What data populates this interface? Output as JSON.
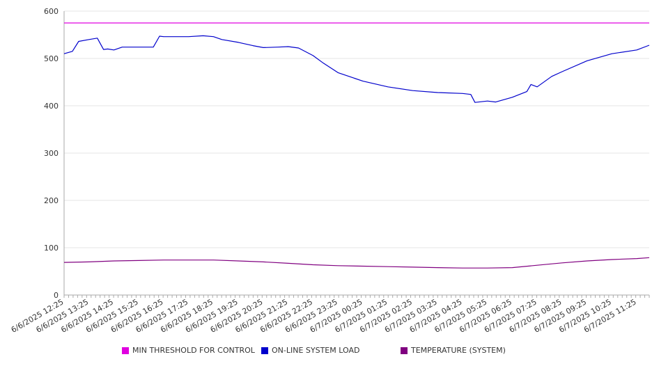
{
  "colors": {
    "threshold": "#e000e0",
    "load": "#0000cc",
    "temperature": "#800080",
    "grid": "#e6e6e6",
    "axis": "#aaaaaa"
  },
  "legend": {
    "items": [
      {
        "label": "MIN THRESHOLD FOR CONTROL",
        "color": "#e000e0"
      },
      {
        "label": "ON-LINE SYSTEM LOAD",
        "color": "#0000cc"
      },
      {
        "label": "TEMPERATURE (SYSTEM)",
        "color": "#800080"
      }
    ]
  },
  "chart_data": {
    "type": "line",
    "title": "",
    "xlabel": "",
    "ylabel": "",
    "ylim": [
      0,
      600
    ],
    "yticks": [
      0,
      100,
      200,
      300,
      400,
      500,
      600
    ],
    "grid": true,
    "legend_position": "bottom",
    "x_range": [
      "6/6/2025 12:25",
      "6/7/2025 11:55"
    ],
    "x_tick_labels": [
      "6/6/2025 12:25",
      "6/6/2025 13:25",
      "6/6/2025 14:25",
      "6/6/2025 15:25",
      "6/6/2025 16:25",
      "6/6/2025 17:25",
      "6/6/2025 18:25",
      "6/6/2025 19:25",
      "6/6/2025 20:25",
      "6/6/2025 21:25",
      "6/6/2025 22:25",
      "6/6/2025 23:25",
      "6/7/2025 00:25",
      "6/7/2025 01:25",
      "6/7/2025 02:25",
      "6/7/2025 03:25",
      "6/7/2025 04:25",
      "6/7/2025 05:25",
      "6/7/2025 06:25",
      "6/7/2025 07:25",
      "6/7/2025 08:25",
      "6/7/2025 09:25",
      "6/7/2025 10:25",
      "6/7/2025 11:25"
    ],
    "series": [
      {
        "name": "MIN THRESHOLD FOR CONTROL",
        "x": [
          "6/6/2025 12:25",
          "6/7/2025 11:55"
        ],
        "values": [
          575,
          575
        ]
      },
      {
        "name": "ON-LINE SYSTEM LOAD",
        "x": [
          "6/6/2025 12:25",
          "6/6/2025 12:45",
          "6/6/2025 13:00",
          "6/6/2025 13:25",
          "6/6/2025 13:45",
          "6/6/2025 14:00",
          "6/6/2025 14:10",
          "6/6/2025 14:25",
          "6/6/2025 14:45",
          "6/6/2025 15:25",
          "6/6/2025 16:00",
          "6/6/2025 16:15",
          "6/6/2025 16:25",
          "6/6/2025 17:25",
          "6/6/2025 18:00",
          "6/6/2025 18:25",
          "6/6/2025 18:45",
          "6/6/2025 19:25",
          "6/6/2025 20:00",
          "6/6/2025 20:25",
          "6/6/2025 21:00",
          "6/6/2025 21:25",
          "6/6/2025 21:50",
          "6/6/2025 22:25",
          "6/6/2025 22:50",
          "6/6/2025 23:25",
          "6/7/2025 00:25",
          "6/7/2025 01:25",
          "6/7/2025 02:25",
          "6/7/2025 03:25",
          "6/7/2025 04:25",
          "6/7/2025 04:45",
          "6/7/2025 04:55",
          "6/7/2025 05:25",
          "6/7/2025 05:45",
          "6/7/2025 06:25",
          "6/7/2025 07:00",
          "6/7/2025 07:10",
          "6/7/2025 07:25",
          "6/7/2025 08:00",
          "6/7/2025 08:25",
          "6/7/2025 09:25",
          "6/7/2025 10:25",
          "6/7/2025 11:25",
          "6/7/2025 11:55"
        ],
        "values": [
          510,
          515,
          536,
          540,
          543,
          519,
          520,
          518,
          524,
          524,
          524,
          547,
          546,
          546,
          548,
          546,
          540,
          534,
          527,
          523,
          524,
          525,
          522,
          506,
          490,
          470,
          452,
          440,
          432,
          428,
          426,
          424,
          407,
          410,
          408,
          418,
          430,
          445,
          440,
          462,
          472,
          495,
          510,
          518,
          528
        ]
      },
      {
        "name": "TEMPERATURE (SYSTEM)",
        "x": [
          "6/6/2025 12:25",
          "6/6/2025 13:25",
          "6/6/2025 14:25",
          "6/6/2025 15:25",
          "6/6/2025 16:25",
          "6/6/2025 17:25",
          "6/6/2025 18:25",
          "6/6/2025 19:25",
          "6/6/2025 20:25",
          "6/6/2025 21:25",
          "6/6/2025 22:25",
          "6/6/2025 23:25",
          "6/7/2025 00:25",
          "6/7/2025 01:25",
          "6/7/2025 02:25",
          "6/7/2025 03:25",
          "6/7/2025 04:25",
          "6/7/2025 05:25",
          "6/7/2025 06:25",
          "6/7/2025 07:25",
          "6/7/2025 08:25",
          "6/7/2025 09:25",
          "6/7/2025 10:25",
          "6/7/2025 11:25",
          "6/7/2025 11:55"
        ],
        "values": [
          69,
          70,
          72,
          73,
          74,
          74,
          74,
          72,
          70,
          67,
          64,
          62,
          61,
          60,
          59,
          58,
          57,
          57,
          58,
          63,
          68,
          72,
          75,
          77,
          79
        ]
      }
    ]
  }
}
